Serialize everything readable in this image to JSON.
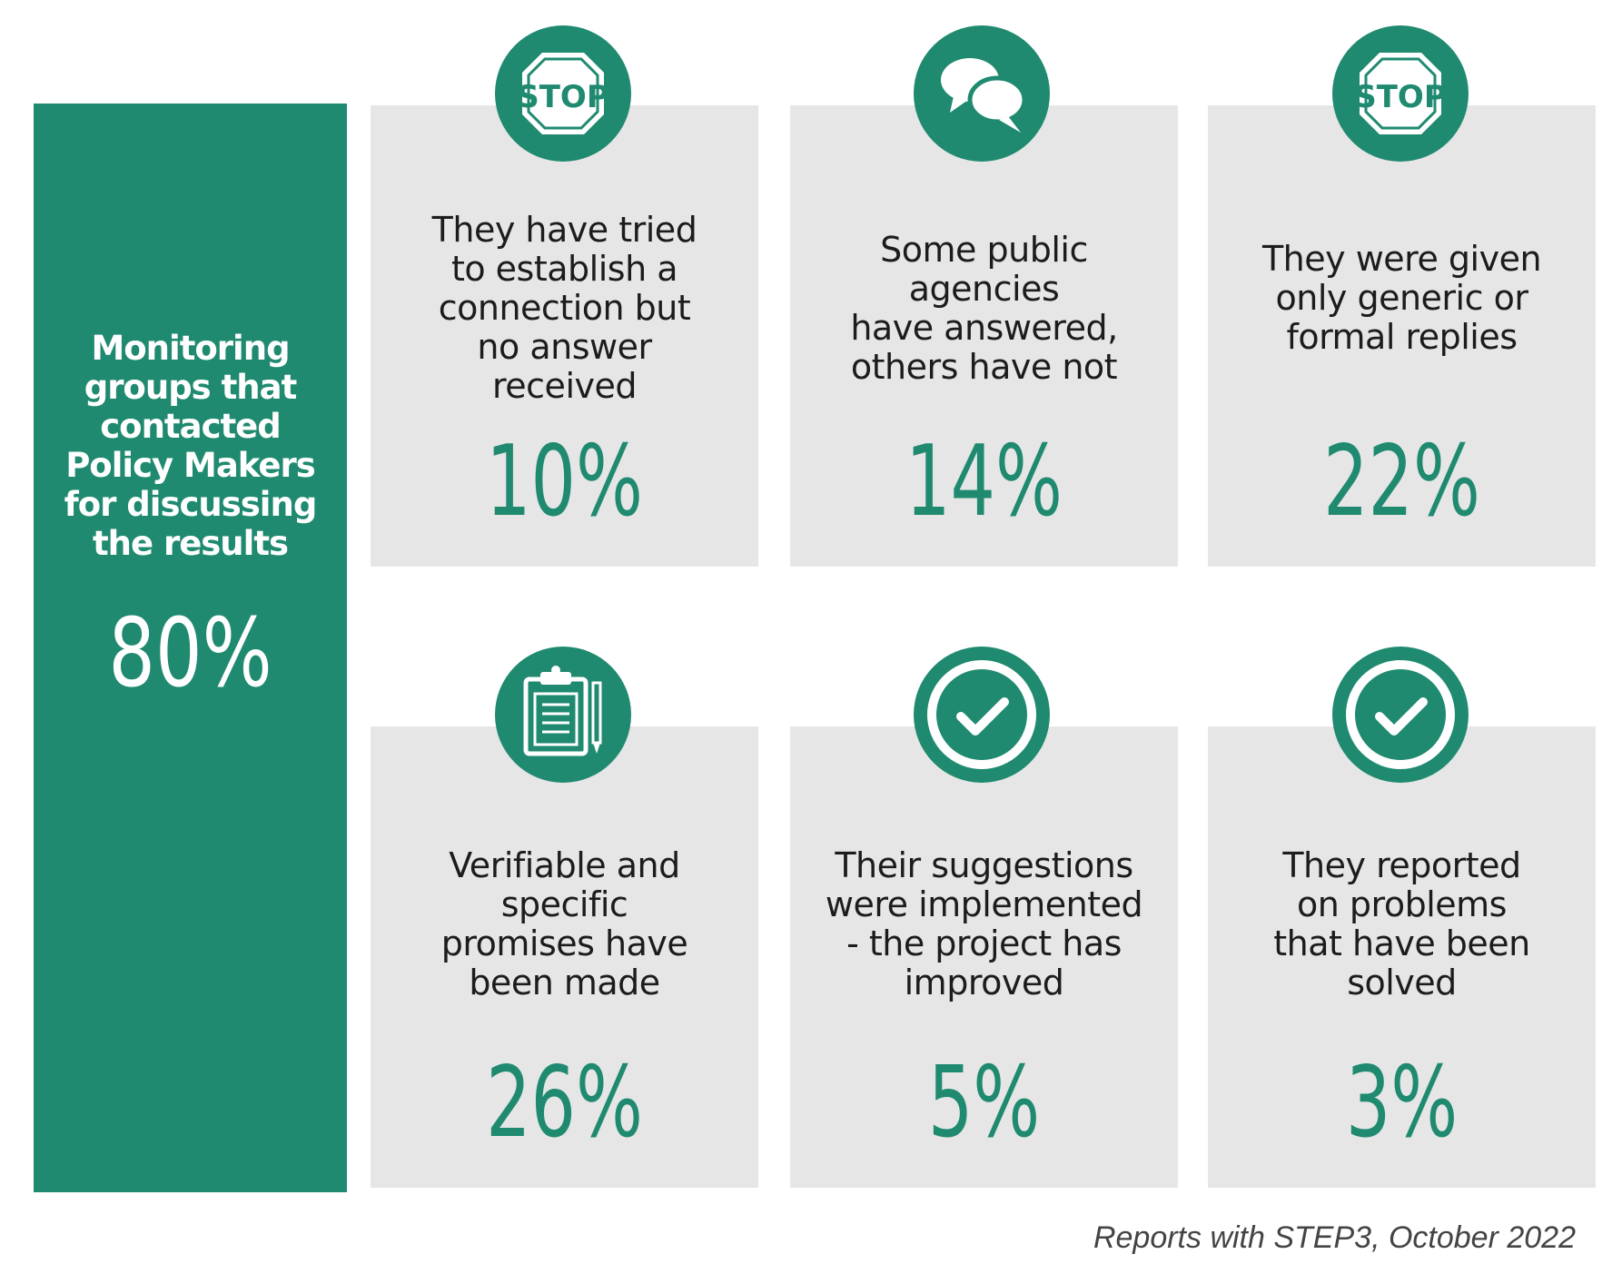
{
  "summary": {
    "label": "Monitoring\ngroups that\ncontacted\nPolicy Makers\nfor discussing\nthe results",
    "value": "80%"
  },
  "cards": [
    {
      "icon": "stop-sign-icon",
      "icon_text": "STOP",
      "text": "They have tried\nto establish a\nconnection but\nno answer\nreceived",
      "value": "10%"
    },
    {
      "icon": "speech-bubbles-icon",
      "text": "Some public\nagencies\nhave answered,\nothers have not",
      "value": "14%"
    },
    {
      "icon": "stop-sign-icon",
      "icon_text": "STOP",
      "text": "They were given\nonly generic or\nformal replies",
      "value": "22%"
    },
    {
      "icon": "clipboard-pencil-icon",
      "text": "Verifiable and\nspecific\npromises have\nbeen made",
      "value": "26%"
    },
    {
      "icon": "checkmark-circle-icon",
      "text": "Their suggestions\nwere implemented\n- the project has\nimproved",
      "value": "5%"
    },
    {
      "icon": "checkmark-circle-icon",
      "text": "They reported\non problems\nthat have been\nsolved",
      "value": "3%"
    }
  ],
  "source": "Reports with STEP3, October 2022",
  "colors": {
    "accent": "#1f8a70",
    "card_bg": "#e6e6e6",
    "text": "#1c1c1c"
  }
}
